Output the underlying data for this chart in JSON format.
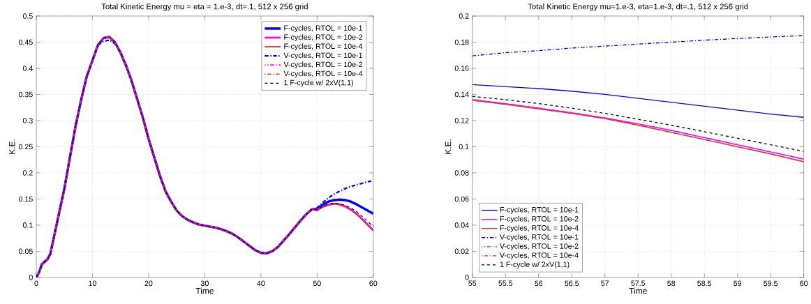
{
  "chart_data": [
    {
      "type": "line",
      "title": "Total Kinetic Energy mu = eta = 1.e-3, dt=.1, 512 x 256 grid",
      "xlabel": "Time",
      "ylabel": "K.E.",
      "xlim": [
        0,
        60
      ],
      "ylim": [
        0,
        0.5
      ],
      "xticks": [
        0,
        10,
        20,
        30,
        40,
        50,
        60
      ],
      "yticks": [
        0,
        0.05,
        0.1,
        0.15,
        0.2,
        0.25,
        0.3,
        0.35,
        0.4,
        0.45,
        0.5
      ],
      "grid": true,
      "legend": "top right",
      "marker": "none",
      "x": [
        0,
        0.5,
        1,
        1.5,
        2,
        2.5,
        3,
        4,
        5,
        6,
        7,
        8,
        9,
        10,
        11,
        12,
        13,
        14,
        15,
        16,
        17,
        18,
        19,
        20,
        21,
        22,
        23,
        24,
        25,
        26,
        27,
        28,
        29,
        30,
        31,
        32,
        33,
        34,
        35,
        36,
        37,
        38,
        39,
        40,
        41,
        42,
        43,
        44,
        45,
        46,
        47,
        48,
        49,
        50,
        51,
        52,
        53,
        54,
        55,
        56,
        57,
        58,
        59,
        60
      ],
      "series": [
        {
          "name": "F-cycles, RTOL = 10e-1",
          "color": "#0000ff",
          "line_style": "solid",
          "values": [
            0,
            0.01,
            0.025,
            0.03,
            0.035,
            0.045,
            0.07,
            0.12,
            0.17,
            0.23,
            0.29,
            0.34,
            0.385,
            0.415,
            0.445,
            0.458,
            0.46,
            0.45,
            0.43,
            0.405,
            0.375,
            0.34,
            0.305,
            0.265,
            0.23,
            0.195,
            0.165,
            0.145,
            0.128,
            0.117,
            0.11,
            0.105,
            0.101,
            0.099,
            0.097,
            0.095,
            0.092,
            0.088,
            0.083,
            0.076,
            0.068,
            0.06,
            0.052,
            0.047,
            0.046,
            0.05,
            0.058,
            0.07,
            0.082,
            0.095,
            0.108,
            0.12,
            0.13,
            0.131,
            0.139,
            0.145,
            0.148,
            0.149,
            0.148,
            0.145,
            0.14,
            0.134,
            0.128,
            0.122
          ]
        },
        {
          "name": "F-cycles, RTOL = 10e-2",
          "color": "#ff00ff",
          "line_style": "solid",
          "values": [
            0,
            0.01,
            0.025,
            0.03,
            0.035,
            0.045,
            0.07,
            0.12,
            0.17,
            0.23,
            0.29,
            0.34,
            0.385,
            0.415,
            0.445,
            0.458,
            0.46,
            0.45,
            0.43,
            0.405,
            0.375,
            0.34,
            0.305,
            0.265,
            0.23,
            0.195,
            0.165,
            0.145,
            0.128,
            0.117,
            0.11,
            0.105,
            0.101,
            0.099,
            0.097,
            0.095,
            0.092,
            0.088,
            0.083,
            0.076,
            0.068,
            0.06,
            0.052,
            0.047,
            0.046,
            0.05,
            0.058,
            0.07,
            0.082,
            0.095,
            0.108,
            0.12,
            0.13,
            0.129,
            0.135,
            0.139,
            0.141,
            0.14,
            0.136,
            0.13,
            0.122,
            0.112,
            0.101,
            0.09
          ]
        },
        {
          "name": "F-cycles, RTOL = 10e-4",
          "color": "#e03030",
          "line_style": "solid",
          "values": [
            0,
            0.01,
            0.025,
            0.03,
            0.035,
            0.045,
            0.07,
            0.12,
            0.17,
            0.23,
            0.29,
            0.34,
            0.385,
            0.415,
            0.445,
            0.458,
            0.46,
            0.45,
            0.43,
            0.405,
            0.375,
            0.34,
            0.305,
            0.265,
            0.23,
            0.195,
            0.165,
            0.145,
            0.128,
            0.117,
            0.11,
            0.105,
            0.101,
            0.099,
            0.097,
            0.095,
            0.092,
            0.088,
            0.083,
            0.076,
            0.068,
            0.06,
            0.052,
            0.047,
            0.046,
            0.05,
            0.058,
            0.07,
            0.082,
            0.095,
            0.108,
            0.12,
            0.13,
            0.128,
            0.135,
            0.139,
            0.14,
            0.139,
            0.135,
            0.129,
            0.121,
            0.111,
            0.1,
            0.089
          ]
        },
        {
          "name": "V-cycles, RTOL = 10e-1",
          "color": "#0000ff",
          "line_style": "dashdot",
          "values": [
            0,
            0.01,
            0.025,
            0.03,
            0.035,
            0.045,
            0.07,
            0.12,
            0.17,
            0.23,
            0.29,
            0.34,
            0.385,
            0.415,
            0.445,
            0.452,
            0.454,
            0.447,
            0.43,
            0.405,
            0.375,
            0.34,
            0.305,
            0.265,
            0.23,
            0.195,
            0.165,
            0.145,
            0.128,
            0.117,
            0.11,
            0.105,
            0.101,
            0.099,
            0.097,
            0.095,
            0.092,
            0.088,
            0.083,
            0.076,
            0.068,
            0.06,
            0.052,
            0.047,
            0.046,
            0.05,
            0.058,
            0.07,
            0.082,
            0.095,
            0.108,
            0.12,
            0.13,
            0.133,
            0.143,
            0.152,
            0.159,
            0.165,
            0.17,
            0.174,
            0.177,
            0.18,
            0.183,
            0.185
          ]
        },
        {
          "name": "V-cycles, RTOL = 10e-2",
          "color": "#ff00ff",
          "line_style": "dashdot",
          "values": [
            0,
            0.01,
            0.025,
            0.03,
            0.035,
            0.045,
            0.07,
            0.12,
            0.17,
            0.23,
            0.29,
            0.34,
            0.385,
            0.415,
            0.445,
            0.458,
            0.46,
            0.45,
            0.43,
            0.405,
            0.375,
            0.34,
            0.305,
            0.265,
            0.23,
            0.195,
            0.165,
            0.145,
            0.128,
            0.117,
            0.11,
            0.105,
            0.101,
            0.099,
            0.097,
            0.095,
            0.092,
            0.088,
            0.083,
            0.076,
            0.068,
            0.06,
            0.052,
            0.047,
            0.046,
            0.05,
            0.058,
            0.07,
            0.082,
            0.095,
            0.108,
            0.12,
            0.13,
            0.129,
            0.135,
            0.139,
            0.141,
            0.14,
            0.136,
            0.13,
            0.122,
            0.112,
            0.101,
            0.09
          ]
        },
        {
          "name": "V-cycles, RTOL = 10e-4",
          "color": "#e03030",
          "line_style": "dashdot",
          "values": [
            0,
            0.01,
            0.025,
            0.03,
            0.035,
            0.045,
            0.07,
            0.12,
            0.17,
            0.23,
            0.29,
            0.34,
            0.385,
            0.415,
            0.445,
            0.458,
            0.46,
            0.45,
            0.43,
            0.405,
            0.375,
            0.34,
            0.305,
            0.265,
            0.23,
            0.195,
            0.165,
            0.145,
            0.128,
            0.117,
            0.11,
            0.105,
            0.101,
            0.099,
            0.097,
            0.095,
            0.092,
            0.088,
            0.083,
            0.076,
            0.068,
            0.06,
            0.052,
            0.047,
            0.046,
            0.05,
            0.058,
            0.07,
            0.082,
            0.095,
            0.108,
            0.12,
            0.13,
            0.128,
            0.135,
            0.139,
            0.14,
            0.139,
            0.135,
            0.129,
            0.121,
            0.111,
            0.1,
            0.089
          ]
        },
        {
          "name": "1 F-cycle w/ 2xV(1,1)",
          "color": "#000000",
          "line_style": "dashed",
          "values": [
            0,
            0.01,
            0.025,
            0.03,
            0.035,
            0.045,
            0.07,
            0.12,
            0.17,
            0.23,
            0.29,
            0.34,
            0.385,
            0.415,
            0.445,
            0.458,
            0.46,
            0.45,
            0.43,
            0.405,
            0.375,
            0.34,
            0.305,
            0.265,
            0.23,
            0.195,
            0.165,
            0.145,
            0.128,
            0.117,
            0.11,
            0.105,
            0.101,
            0.099,
            0.097,
            0.095,
            0.092,
            0.088,
            0.083,
            0.076,
            0.068,
            0.06,
            0.052,
            0.047,
            0.046,
            0.05,
            0.058,
            0.07,
            0.082,
            0.095,
            0.108,
            0.12,
            0.13,
            0.129,
            0.136,
            0.14,
            0.142,
            0.141,
            0.138,
            0.133,
            0.126,
            0.117,
            0.107,
            0.097
          ]
        }
      ]
    },
    {
      "type": "line",
      "title": "Total Kinetic Energy mu=1.e-3, eta=1.e-3, dt=.1, 512 x 256 grid",
      "xlabel": "Time",
      "ylabel": "K.E.",
      "xlim": [
        55,
        60
      ],
      "ylim": [
        0,
        0.2
      ],
      "xticks": [
        55,
        55.5,
        56,
        56.5,
        57,
        57.5,
        58,
        58.5,
        59,
        59.5,
        60
      ],
      "yticks": [
        0,
        0.02,
        0.04,
        0.06,
        0.08,
        0.1,
        0.12,
        0.14,
        0.16,
        0.18,
        0.2
      ],
      "grid": true,
      "legend": "bottom left",
      "marker": "none",
      "x": [
        55,
        55.5,
        56,
        56.5,
        57,
        57.5,
        58,
        58.5,
        59,
        59.5,
        60
      ],
      "series": [
        {
          "name": "F-cycles, RTOL = 10e-1",
          "color": "#0000ff",
          "line_style": "solid",
          "values": [
            0.1475,
            0.146,
            0.1445,
            0.1425,
            0.14,
            0.137,
            0.134,
            0.131,
            0.128,
            0.125,
            0.1225
          ]
        },
        {
          "name": "F-cycles, RTOL = 10e-2",
          "color": "#ff00ff",
          "line_style": "solid",
          "values": [
            0.136,
            0.133,
            0.1295,
            0.126,
            0.122,
            0.1175,
            0.1125,
            0.107,
            0.1015,
            0.096,
            0.0905
          ]
        },
        {
          "name": "F-cycles, RTOL = 10e-4",
          "color": "#e03030",
          "line_style": "solid",
          "values": [
            0.1355,
            0.1325,
            0.129,
            0.1255,
            0.1215,
            0.1165,
            0.111,
            0.1055,
            0.1,
            0.0945,
            0.0885
          ]
        },
        {
          "name": "V-cycles, RTOL = 10e-1",
          "color": "#0000ff",
          "line_style": "dashdot",
          "values": [
            0.1695,
            0.172,
            0.1735,
            0.1755,
            0.177,
            0.1785,
            0.18,
            0.1815,
            0.1828,
            0.184,
            0.185
          ]
        },
        {
          "name": "V-cycles, RTOL = 10e-2",
          "color": "#ff00ff",
          "line_style": "dashdot",
          "values": [
            0.136,
            0.133,
            0.1295,
            0.126,
            0.122,
            0.1175,
            0.1125,
            0.107,
            0.1015,
            0.096,
            0.0905
          ]
        },
        {
          "name": "V-cycles, RTOL = 10e-4",
          "color": "#e03030",
          "line_style": "dashdot",
          "values": [
            0.1355,
            0.1325,
            0.129,
            0.1255,
            0.1215,
            0.1165,
            0.111,
            0.1055,
            0.1,
            0.0945,
            0.0885
          ]
        },
        {
          "name": "1 F-cycle w/ 2xV(1,1)",
          "color": "#000000",
          "line_style": "dashed",
          "values": [
            0.1385,
            0.136,
            0.133,
            0.1295,
            0.1255,
            0.121,
            0.1165,
            0.1115,
            0.1065,
            0.1015,
            0.0965
          ]
        }
      ]
    }
  ]
}
